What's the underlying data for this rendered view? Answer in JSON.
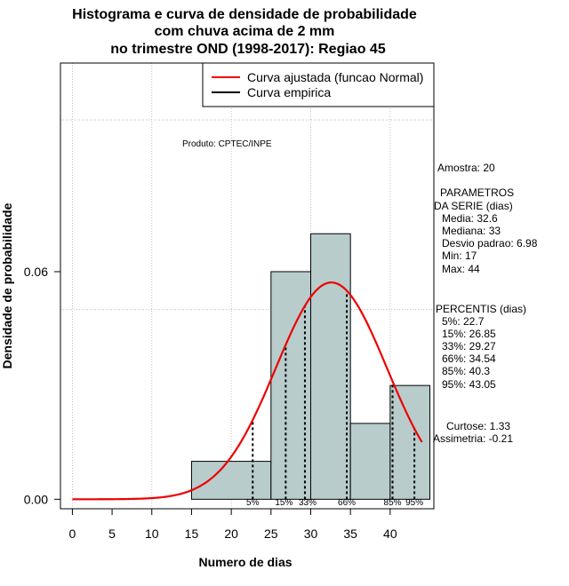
{
  "chart_data": {
    "type": "histogram",
    "title_lines": [
      "Histograma e curva de densidade de probabilidade",
      "com chuva acima de 2 mm",
      "no trimestre OND (1998-2017): Regiao 45"
    ],
    "xlabel": "Numero de dias",
    "ylabel": "Densidade de probabilidade",
    "xlim": [
      -1.5,
      45.5
    ],
    "ylim": [
      -0.0025,
      0.115
    ],
    "x_ticks": [
      0,
      5,
      10,
      15,
      20,
      25,
      30,
      35,
      40
    ],
    "y_ticks": [
      0.0,
      0.06
    ],
    "y_tick_labels": [
      "0.00",
      "0.06"
    ],
    "grid_x": [
      0,
      10,
      20,
      30,
      40
    ],
    "grid_y": [
      0.05,
      0.1
    ],
    "bins": [
      {
        "x0": 15,
        "x1": 25,
        "density": 0.01
      },
      {
        "x0": 25,
        "x1": 30,
        "density": 0.06
      },
      {
        "x0": 30,
        "x1": 35,
        "density": 0.07
      },
      {
        "x0": 35,
        "x1": 40,
        "density": 0.02
      },
      {
        "x0": 40,
        "x1": 45,
        "density": 0.03
      }
    ],
    "bar_color": "#b8cccc",
    "curve_color": "#ee0000",
    "normal_mean": 32.6,
    "normal_sd": 6.98,
    "curve_x_range": [
      0,
      44
    ],
    "percentile_lines": [
      {
        "label": "5%",
        "x": 22.7
      },
      {
        "label": "15%",
        "x": 26.85
      },
      {
        "label": "33%",
        "x": 29.27
      },
      {
        "label": "66%",
        "x": 34.54
      },
      {
        "label": "85%",
        "x": 40.3
      },
      {
        "label": "95%",
        "x": 43.05
      }
    ],
    "legend": [
      {
        "label": "Curva ajustada (funcao Normal)",
        "color": "#ee0000"
      },
      {
        "label": "Curva empirica",
        "color": "#000000"
      }
    ],
    "annotation": "Produto: CPTEC/INPE",
    "stats": {
      "amostra": "Amostra: 20",
      "param_lines": [
        "PARAMETROS",
        "DA SERIE (dias)",
        "Media: 32.6",
        "Mediana: 33",
        "Desvio padrao: 6.98",
        "Min: 17",
        "Max: 44"
      ],
      "percentil_lines": [
        "PERCENTIS (dias)",
        "5%: 22.7",
        "15%: 26.85",
        "33%: 29.27",
        "66%: 34.54",
        "85%: 40.3",
        "95%: 43.05"
      ],
      "shape_lines": [
        "Curtose: 1.33",
        "Assimetria: -0.21"
      ]
    }
  }
}
